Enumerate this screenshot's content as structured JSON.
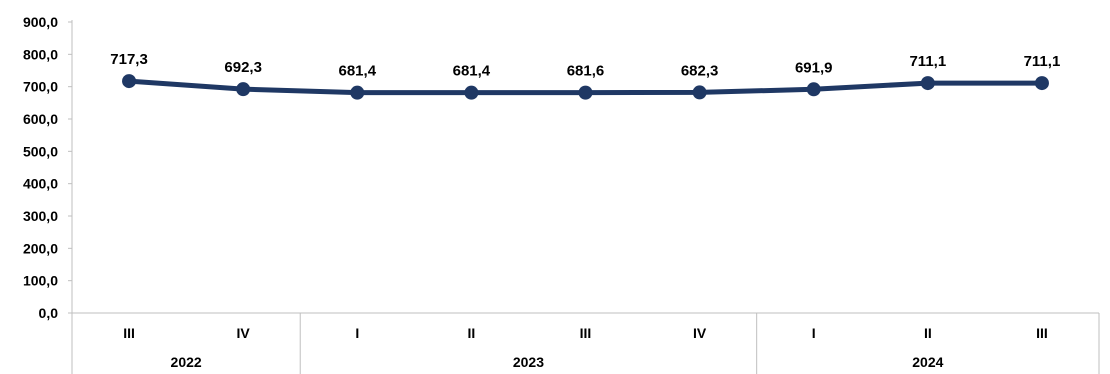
{
  "chart_data": {
    "type": "line",
    "categories": [
      "III",
      "IV",
      "I",
      "II",
      "III",
      "IV",
      "I",
      "II",
      "III"
    ],
    "groups": [
      {
        "label": "2022",
        "count": 2
      },
      {
        "label": "2023",
        "count": 4
      },
      {
        "label": "2024",
        "count": 3
      }
    ],
    "series": [
      {
        "values": [
          717.3,
          692.3,
          681.4,
          681.4,
          681.6,
          682.3,
          691.9,
          711.1,
          711.1
        ],
        "data_labels": [
          "717,3",
          "692,3",
          "681,4",
          "681,4",
          "681,6",
          "682,3",
          "691,9",
          "711,1",
          "711,1"
        ],
        "color": "#1f3864"
      }
    ],
    "ylim": [
      0,
      900
    ],
    "yticks": [
      0,
      100,
      200,
      300,
      400,
      500,
      600,
      700,
      800,
      900
    ],
    "ytick_labels": [
      "0,0",
      "100,0",
      "200,0",
      "300,0",
      "400,0",
      "500,0",
      "600,0",
      "700,0",
      "800,0",
      "900,0"
    ],
    "title": "",
    "xlabel": "",
    "ylabel": "",
    "grid": false,
    "legend": "none",
    "axis_color": "#bfbfbf"
  }
}
